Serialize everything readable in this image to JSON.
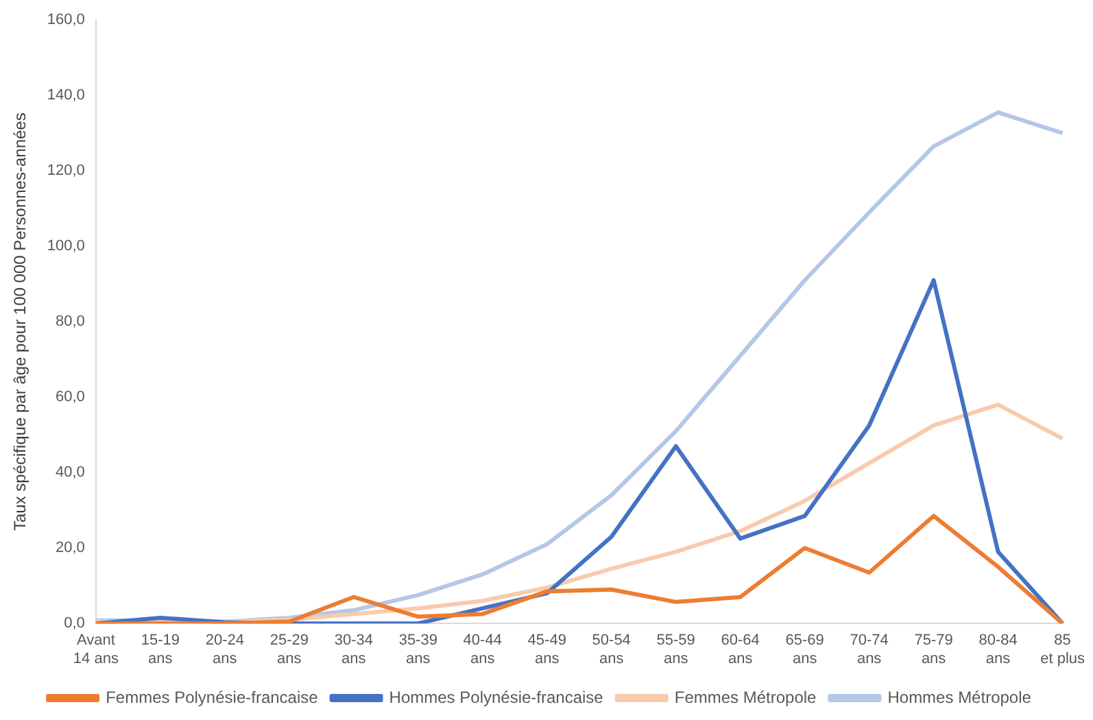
{
  "chart_data": {
    "type": "line",
    "ylabel": "Taux spécifique par âge pour 100 000 Personnes-années",
    "categories": [
      "Avant 14 ans",
      "15-19 ans",
      "20-24 ans",
      "25-29 ans",
      "30-34 ans",
      "35-39 ans",
      "40-44 ans",
      "45-49 ans",
      "50-54 ans",
      "55-59 ans",
      "60-64 ans",
      "65-69 ans",
      "70-74 ans",
      "75-79 ans",
      "80-84 ans",
      "85 et plus"
    ],
    "series": [
      {
        "name": "Femmes Polynésie-francaise",
        "color": "#ed7d31",
        "values": [
          0,
          0,
          0,
          0.5,
          7,
          1.8,
          2.5,
          8.5,
          9,
          5.7,
          7,
          20,
          13.5,
          28.5,
          15,
          0
        ]
      },
      {
        "name": "Hommes Polynésie-francaise",
        "color": "#4472c4",
        "values": [
          0,
          1.5,
          0.3,
          0,
          0,
          0,
          4,
          8,
          23,
          47,
          22.5,
          28.5,
          52.5,
          91,
          19,
          0
        ]
      },
      {
        "name": "Femmes Métropole",
        "color": "#f8cbad",
        "values": [
          0.5,
          0.5,
          0.5,
          1,
          2.5,
          4,
          6,
          9.5,
          14.5,
          19,
          24.5,
          32.5,
          42.5,
          52.5,
          58,
          49
        ]
      },
      {
        "name": "Hommes Métropole",
        "color": "#b4c7e7",
        "values": [
          0.8,
          0.8,
          0.5,
          1.5,
          3.5,
          7.5,
          13,
          21,
          34,
          51,
          71,
          91,
          109,
          126.5,
          135.5,
          130
        ]
      }
    ],
    "ylim": [
      0,
      160
    ],
    "yticks": [
      {
        "value": 0,
        "label": "0,0"
      },
      {
        "value": 20,
        "label": "20,0"
      },
      {
        "value": 40,
        "label": "40,0"
      },
      {
        "value": 60,
        "label": "60,0"
      },
      {
        "value": 80,
        "label": "80,0"
      },
      {
        "value": 100,
        "label": "100,0"
      },
      {
        "value": 120,
        "label": "120,0"
      },
      {
        "value": 140,
        "label": "140,0"
      },
      {
        "value": 160,
        "label": "160,0"
      }
    ],
    "grid": false,
    "legend": "bottom",
    "marker": "none",
    "line_style": "solid"
  }
}
